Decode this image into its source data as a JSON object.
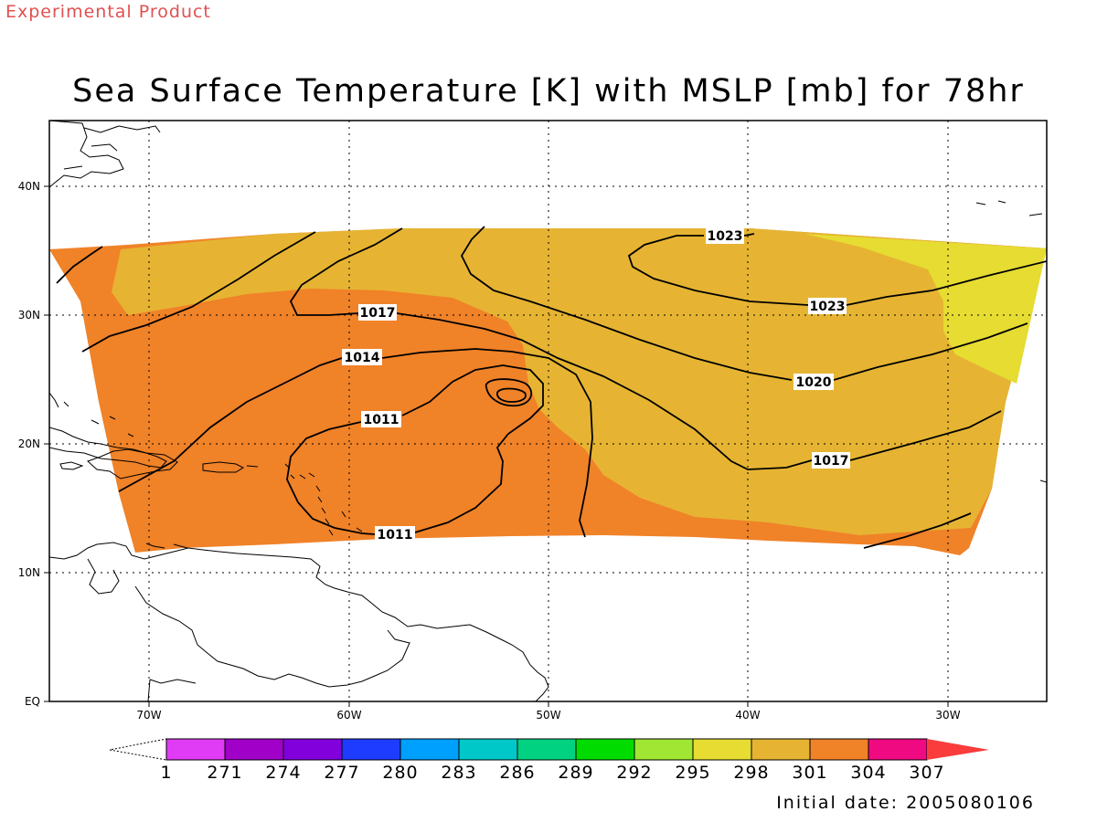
{
  "header": {
    "experimental": "Experimental Product",
    "title": "Sea Surface Temperature [K] with MSLP [mb] for 78hr"
  },
  "map": {
    "lon_ticks": [
      "70W",
      "60W",
      "50W",
      "40W",
      "30W"
    ],
    "lat_ticks": [
      "40N",
      "30N",
      "20N",
      "10N",
      "EQ"
    ],
    "colors": {
      "sst_298": "#e6dc32",
      "sst_301": "#e6b432",
      "sst_304": "#f08228",
      "land_outline": "#000000",
      "contour": "#000000"
    },
    "contour_labels": [
      "1023",
      "1023",
      "1020",
      "1017",
      "1017",
      "1014",
      "1011",
      "1011"
    ]
  },
  "colorbar": {
    "labels": [
      "1",
      "271",
      "274",
      "277",
      "280",
      "283",
      "286",
      "289",
      "292",
      "295",
      "298",
      "301",
      "304",
      "307"
    ],
    "colors": [
      "#e13cf5",
      "#a000c8",
      "#8200dc",
      "#1e3cff",
      "#00a0ff",
      "#00c8c8",
      "#00d282",
      "#00dc00",
      "#a0e632",
      "#e6dc32",
      "#e6b432",
      "#f08228",
      "#f00a82",
      "#fa3c3c"
    ]
  },
  "footer": {
    "initial_date": "Initial date: 2005080106"
  }
}
